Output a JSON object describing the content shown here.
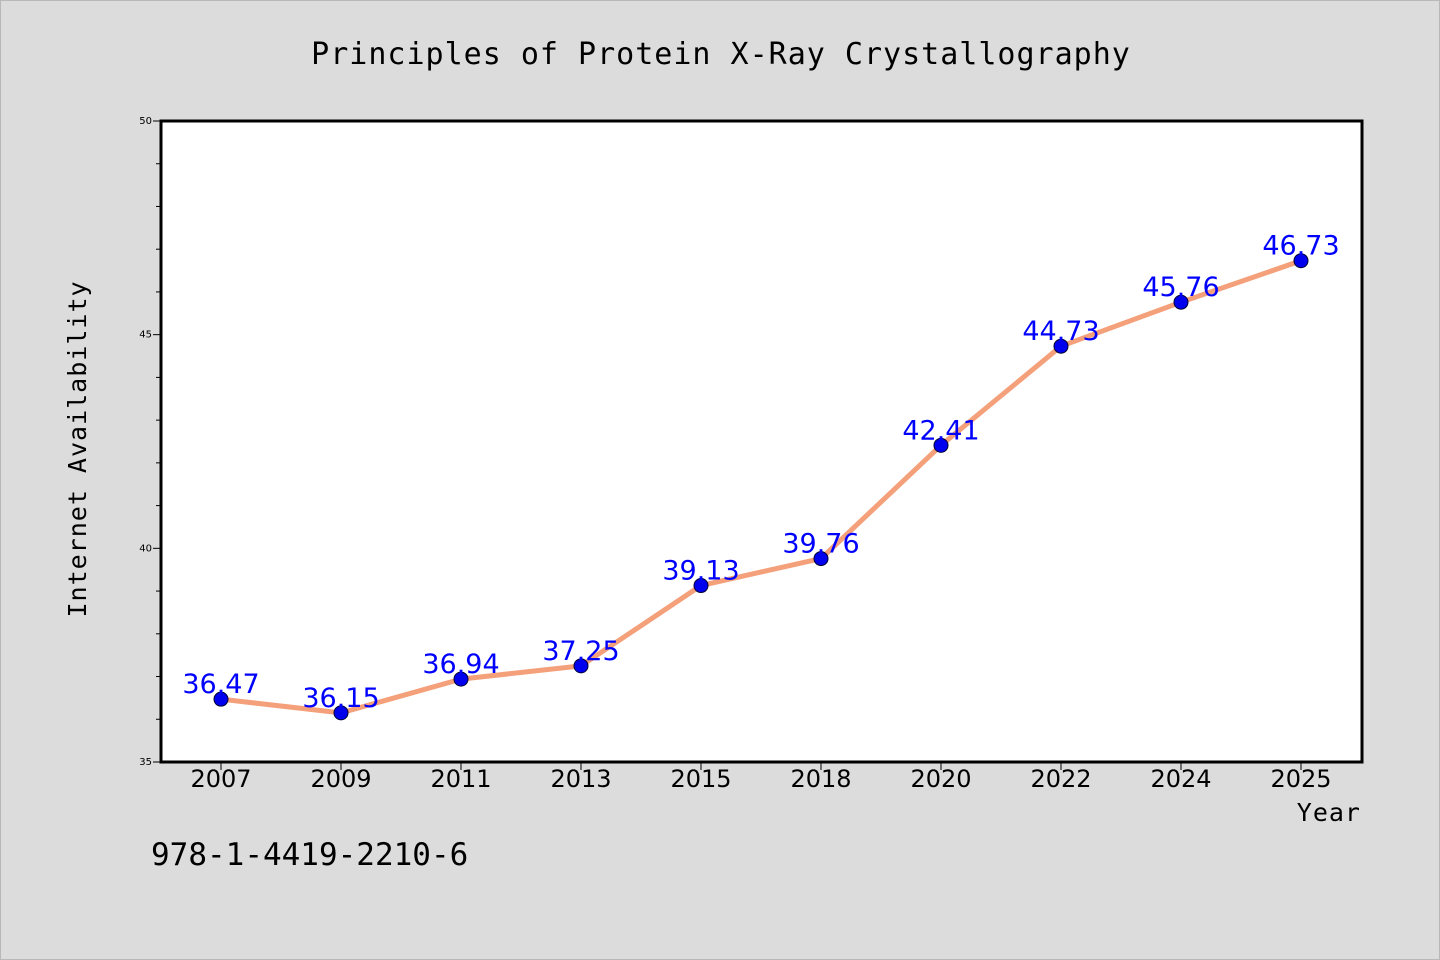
{
  "chart_data": {
    "type": "line",
    "title": "Principles of Protein X-Ray Crystallography",
    "xlabel": "Year",
    "ylabel": "Internet Availability",
    "categories": [
      "2007",
      "2009",
      "2011",
      "2013",
      "2015",
      "2018",
      "2020",
      "2022",
      "2024",
      "2025"
    ],
    "series": [
      {
        "values": [
          36.47,
          36.15,
          36.94,
          37.25,
          39.13,
          39.76,
          42.41,
          44.73,
          45.76,
          46.73
        ]
      }
    ],
    "data_labels": [
      "36.47",
      "36.15",
      "36.94",
      "37.25",
      "39.13",
      "39.76",
      "42.41",
      "44.73",
      "45.76",
      "46.73"
    ],
    "ylim": [
      35,
      50
    ],
    "yticks": [
      35,
      40,
      45,
      50
    ],
    "grid": false,
    "line_color": "#f4a07a",
    "marker_color": "#0000ee",
    "label_color": "#0000ff",
    "background_color": "#dcdcdc",
    "plot_background": "#ffffff"
  },
  "footer": {
    "isbn": "978-1-4419-2210-6"
  }
}
